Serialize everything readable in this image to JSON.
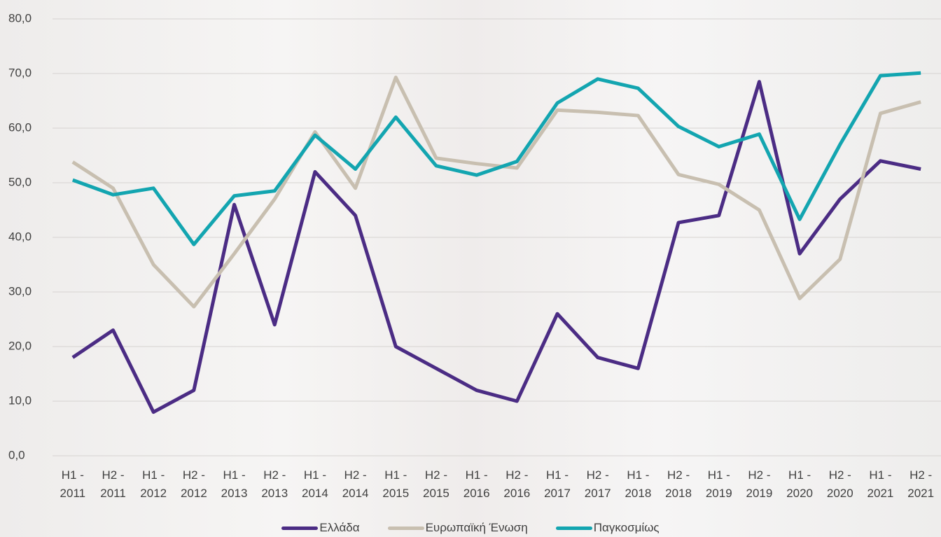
{
  "chart_data": {
    "type": "line",
    "categories": [
      "H1 - 2011",
      "H2 - 2011",
      "H1 - 2012",
      "H2 - 2012",
      "H1 - 2013",
      "H2 - 2013",
      "H1 - 2014",
      "H2 - 2014",
      "H1 - 2015",
      "H2 - 2015",
      "H1 - 2016",
      "H2 - 2016",
      "H1 - 2017",
      "H2 - 2017",
      "H1 - 2018",
      "H2 - 2018",
      "H1 - 2019",
      "H2 - 2019",
      "H1 - 2020",
      "H2 - 2020",
      "H1 - 2021",
      "H2 - 2021"
    ],
    "series": [
      {
        "name": "Ελλάδα",
        "color": "#4b2c84",
        "values": [
          18,
          23,
          8,
          12,
          46,
          24,
          52,
          44,
          20,
          16,
          12,
          10,
          26,
          18,
          16,
          42.7,
          44,
          68.5,
          37,
          47,
          54,
          52.5
        ]
      },
      {
        "name": "Ευρωπαϊκή Ένωση",
        "color": "#c8bfb0",
        "values": [
          53.8,
          49,
          35,
          27.3,
          37,
          47,
          59.3,
          49,
          69.3,
          54.5,
          53.5,
          52.7,
          63.3,
          62.9,
          62.3,
          51.5,
          49.7,
          45,
          28.8,
          36,
          62.7,
          64.8
        ]
      },
      {
        "name": "Παγκοσμίως",
        "color": "#13a5b0",
        "values": [
          50.5,
          47.8,
          49,
          38.7,
          47.6,
          48.5,
          58.7,
          52.5,
          62,
          53.1,
          51.4,
          53.9,
          64.6,
          69,
          67.3,
          60.3,
          56.6,
          58.9,
          43.3,
          57,
          69.6,
          70.1
        ]
      }
    ],
    "ylim": [
      0,
      80
    ],
    "yticks": [
      {
        "value": 0,
        "label": "0,0"
      },
      {
        "value": 10,
        "label": "10,0"
      },
      {
        "value": 20,
        "label": "20,0"
      },
      {
        "value": 30,
        "label": "30,0"
      },
      {
        "value": 40,
        "label": "40,0"
      },
      {
        "value": 50,
        "label": "50,0"
      },
      {
        "value": 60,
        "label": "60,0"
      },
      {
        "value": 70,
        "label": "70,0"
      },
      {
        "value": 80,
        "label": "80,0"
      }
    ],
    "grid": true,
    "legend": "bottom"
  }
}
